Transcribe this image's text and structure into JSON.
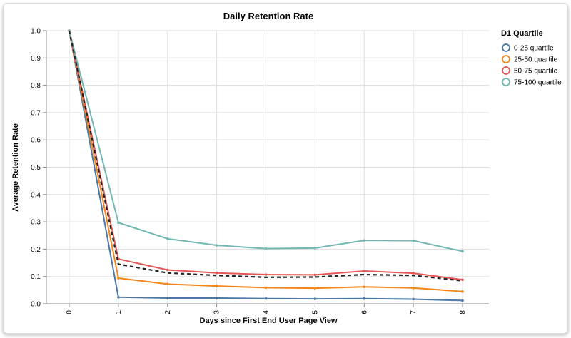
{
  "chart_data": {
    "type": "line",
    "title": "Daily Retention Rate",
    "xlabel": "Days since First End User Page View",
    "ylabel": "Average Retention Rate",
    "x": [
      0,
      1,
      2,
      3,
      4,
      5,
      6,
      7,
      8
    ],
    "xlim": [
      0,
      8
    ],
    "ylim": [
      0,
      1
    ],
    "yticks": [
      "0.0",
      "0.1",
      "0.2",
      "0.3",
      "0.4",
      "0.5",
      "0.6",
      "0.7",
      "0.8",
      "0.9",
      "1.0"
    ],
    "grid": true,
    "legend": {
      "title": "D1 Quartile",
      "placement": "top-right"
    },
    "series": [
      {
        "name": "0-25 quartile",
        "color": "#4c78a8",
        "values": [
          1.0,
          0.024,
          0.021,
          0.021,
          0.019,
          0.018,
          0.019,
          0.017,
          0.012
        ]
      },
      {
        "name": "25-50 quartile",
        "color": "#f58518",
        "values": [
          1.0,
          0.094,
          0.072,
          0.065,
          0.059,
          0.057,
          0.062,
          0.058,
          0.045
        ]
      },
      {
        "name": "50-75 quartile",
        "color": "#e45756",
        "values": [
          1.0,
          0.164,
          0.124,
          0.113,
          0.107,
          0.106,
          0.12,
          0.112,
          0.088
        ]
      },
      {
        "name": "75-100 quartile",
        "color": "#72b7b2",
        "values": [
          1.0,
          0.297,
          0.238,
          0.214,
          0.202,
          0.204,
          0.232,
          0.231,
          0.192
        ]
      },
      {
        "color": "#222222",
        "dashed": true,
        "values": [
          1.0,
          0.145,
          0.113,
          0.104,
          0.097,
          0.098,
          0.107,
          0.104,
          0.084
        ]
      }
    ]
  }
}
